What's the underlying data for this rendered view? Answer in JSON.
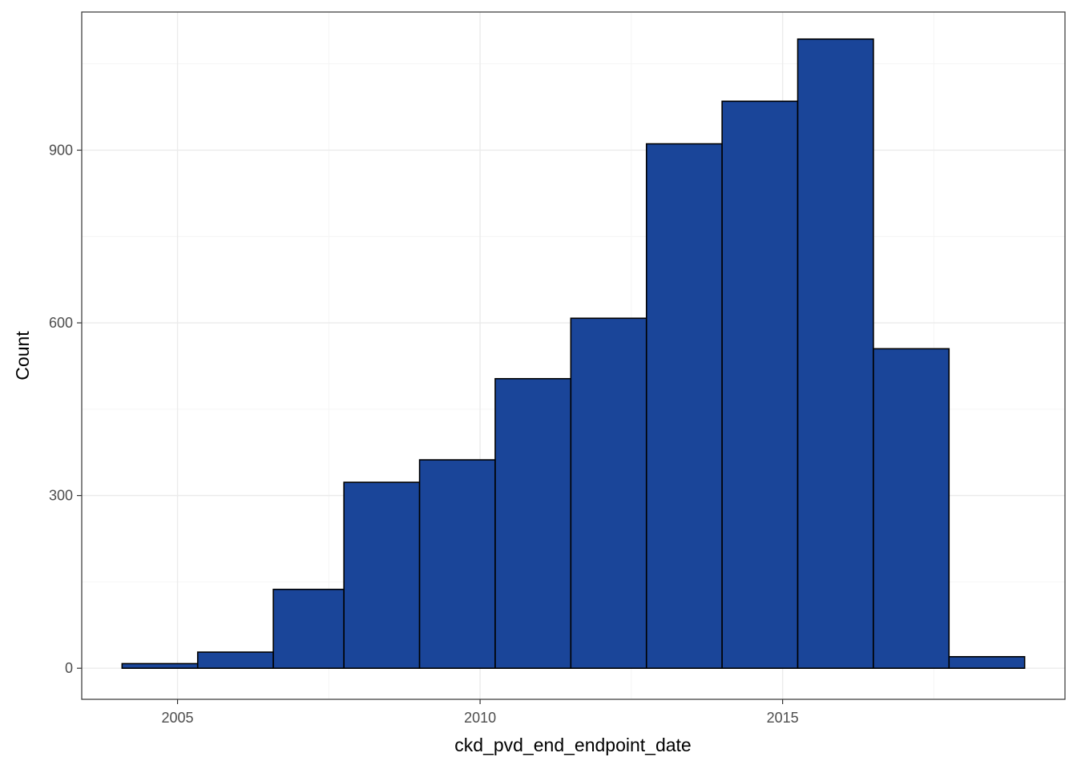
{
  "chart_data": {
    "type": "bar",
    "subtype": "histogram",
    "title": "",
    "xlabel": "ckd_pvd_end_endpoint_date",
    "ylabel": "Count",
    "bins": [
      {
        "start": "2004-02",
        "end": "2005-05",
        "count": 8
      },
      {
        "start": "2005-05",
        "end": "2006-08",
        "count": 28
      },
      {
        "start": "2006-08",
        "end": "2007-10",
        "count": 137
      },
      {
        "start": "2007-10",
        "end": "2009-01",
        "count": 323
      },
      {
        "start": "2009-01",
        "end": "2010-04",
        "count": 362
      },
      {
        "start": "2010-04",
        "end": "2011-07",
        "count": 503
      },
      {
        "start": "2011-07",
        "end": "2012-10",
        "count": 608
      },
      {
        "start": "2012-10",
        "end": "2014-01",
        "count": 911
      },
      {
        "start": "2014-01",
        "end": "2015-04",
        "count": 985
      },
      {
        "start": "2015-04",
        "end": "2016-07",
        "count": 1093
      },
      {
        "start": "2016-07",
        "end": "2017-10",
        "count": 555
      },
      {
        "start": "2017-10",
        "end": "2019-01",
        "count": 20
      }
    ],
    "xlim": [
      "2003-06",
      "2019-09"
    ],
    "ylim": [
      -54,
      1140
    ],
    "x_ticks": [
      "2005",
      "2010",
      "2015"
    ],
    "y_ticks": [
      "0",
      "300",
      "600",
      "900"
    ],
    "bar_fill": "#1a4599",
    "bar_outline": "#000000",
    "grid": true,
    "legend": "none"
  }
}
